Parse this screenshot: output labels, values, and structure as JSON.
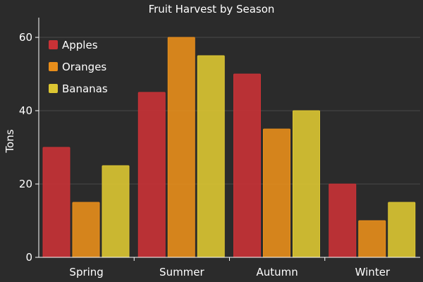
{
  "chart_data": {
    "type": "bar",
    "title": "Fruit Harvest by Season",
    "xlabel": "",
    "ylabel": "Tons",
    "ylim": [
      0,
      65
    ],
    "yticks": [
      0,
      20,
      40,
      60
    ],
    "grid": "horizontal",
    "legend_position": "top-left",
    "categories": [
      "Spring",
      "Summer",
      "Autumn",
      "Winter"
    ],
    "series": [
      {
        "name": "Apples",
        "color": "#c93236",
        "values": [
          30,
          45,
          50,
          20
        ]
      },
      {
        "name": "Oranges",
        "color": "#e88e1b",
        "values": [
          15,
          60,
          35,
          10
        ]
      },
      {
        "name": "Bananas",
        "color": "#dcc632",
        "values": [
          25,
          55,
          40,
          15
        ]
      }
    ]
  }
}
